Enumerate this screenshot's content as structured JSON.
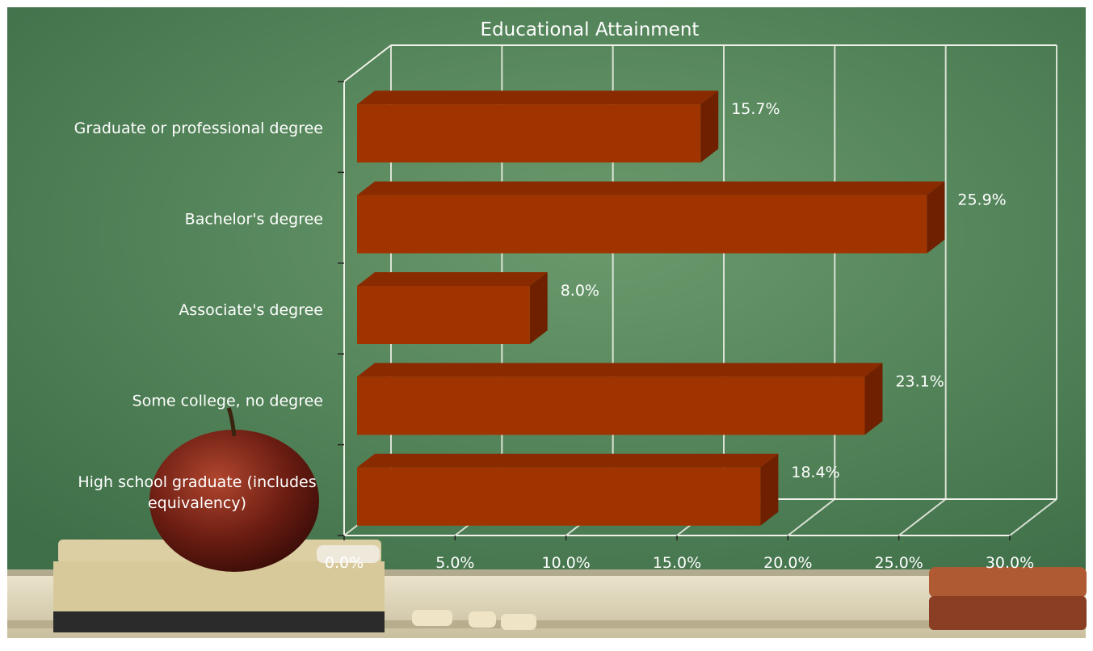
{
  "colors": {
    "chalkboard": "#5b8a5e",
    "chalkboard_dark": "#3f6f48",
    "bar_front": "#a03400",
    "bar_top": "#8a2a00",
    "bar_side": "#6e2000",
    "grid": "#f2f2ea",
    "text": "#ffffff"
  },
  "chart_data": {
    "type": "bar",
    "orientation": "horizontal",
    "title": "Educational Attainment",
    "categories": [
      "Graduate or professional degree",
      "Bachelor's degree",
      "Associate's degree",
      "Some college, no degree",
      "High school graduate (includes equivalency)"
    ],
    "values": [
      15.7,
      25.9,
      8.0,
      23.1,
      18.4
    ],
    "data_labels": [
      "15.7%",
      "25.9%",
      "8.0%",
      "23.1%",
      "18.4%"
    ],
    "xlim": [
      0,
      30
    ],
    "x_ticks": [
      "0.0%",
      "5.0%",
      "10.0%",
      "15.0%",
      "20.0%",
      "25.0%",
      "30.0%"
    ],
    "xlabel": "",
    "ylabel": "",
    "grid": true,
    "legend": "none",
    "style": "3d"
  }
}
